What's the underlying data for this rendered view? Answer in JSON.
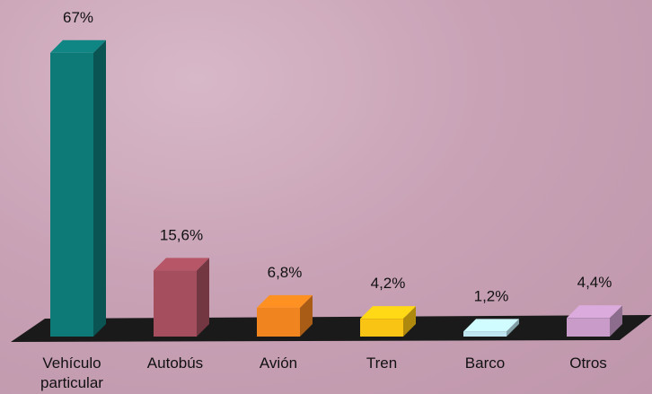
{
  "chart_data": {
    "type": "bar3d",
    "categories": [
      "Vehículo particular",
      "Autobús",
      "Avión",
      "Tren",
      "Barco",
      "Otros"
    ],
    "values": [
      67,
      15.6,
      6.8,
      4.2,
      1.2,
      4.4
    ],
    "value_labels": [
      "67%",
      "15,6%",
      "6,8%",
      "4,2%",
      "1,2%",
      "4,4%"
    ],
    "colors": [
      "#0e7a78",
      "#a54e5e",
      "#f0841f",
      "#f9c414",
      "#bde4ef",
      "#c89bc9"
    ]
  }
}
